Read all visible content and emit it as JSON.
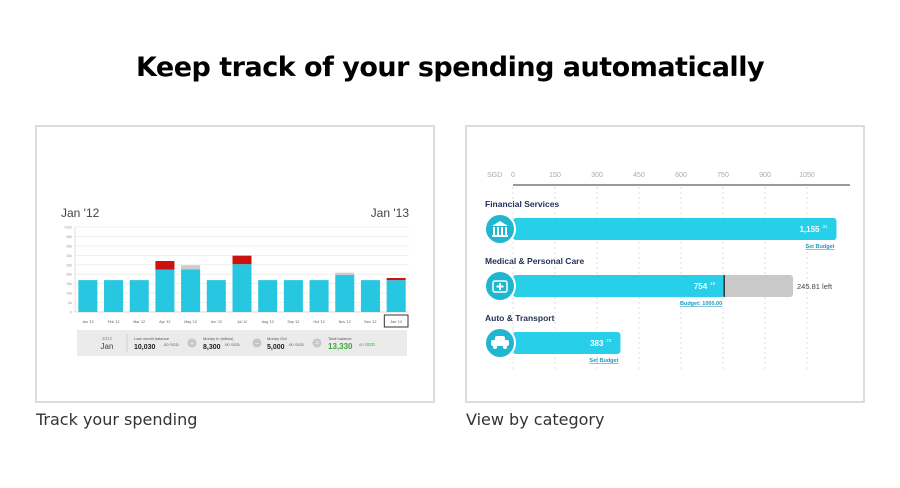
{
  "headline": "Keep track of your spending automatically",
  "captions": {
    "left": "Track your spending",
    "right": "View by category"
  },
  "monthly_chart": {
    "start_label": "Jan '12",
    "end_label": "Jan '13",
    "months": [
      "Jan '12",
      "Feb '12",
      "Mar '12",
      "Apr '12",
      "May '12",
      "Jun '12",
      "Jul '12",
      "Aug '12",
      "Sep '12",
      "Oct '12",
      "Nov '12",
      "Dec '12",
      "Jan '13"
    ],
    "ytick_labels": [
      "SGD",
      "40k",
      "35k",
      "30k",
      "25k",
      "20k",
      "15k",
      "10k",
      "5k",
      "0"
    ],
    "ymax": 40,
    "base_values": [
      15,
      15,
      15,
      20,
      20,
      15,
      22.5,
      15,
      15,
      15,
      17.5,
      15,
      15
    ],
    "overspend_values": [
      0,
      0,
      0,
      4,
      0,
      0,
      4,
      0,
      0,
      0,
      0,
      0,
      1
    ],
    "gray_values": [
      0,
      0,
      0,
      0,
      2,
      0,
      0,
      0,
      0,
      0,
      1,
      0,
      0
    ],
    "colors": {
      "base": "#27c6e1",
      "overspend": "#cc1111",
      "gray": "#cccccc"
    }
  },
  "summary_bar": {
    "period_year": "2012",
    "period_month": "Jan",
    "last_month_label": "Last month balance",
    "last_month_value": "10,030",
    "last_month_decimals": ".00",
    "money_in_label": "Money In (inflow)",
    "money_in_value": "8,300",
    "money_in_decimals": ".00",
    "money_out_label": "Money Out",
    "money_out_value": "5,000",
    "money_out_decimals": ".00",
    "total_label": "Total balance",
    "total_value": "13,330",
    "total_decimals": ".00",
    "currency": "SGD",
    "plus_symbol": "+",
    "minus_symbol": "−",
    "equals_symbol": "="
  },
  "category_chart": {
    "axis_unit": "SGD",
    "ticks": [
      "0",
      "150",
      "300",
      "450",
      "600",
      "750",
      "900",
      "1050"
    ],
    "xmax": 1050,
    "categories": [
      {
        "name": "Financial Services",
        "icon": "bank-icon",
        "spent": 1155.31,
        "spent_int": "1,155",
        "spent_dec": ".31",
        "budget": null,
        "link": "Set Budget",
        "left_text": ""
      },
      {
        "name": "Medical & Personal Care",
        "icon": "medical-icon",
        "spent": 754.19,
        "spent_int": "754",
        "spent_dec": ".19",
        "budget": 1000,
        "link": "Budget: 1000.00",
        "left_text": "245.81 left"
      },
      {
        "name": "Auto & Transport",
        "icon": "car-icon",
        "spent": 383.72,
        "spent_int": "383",
        "spent_dec": ".72",
        "budget": null,
        "link": "Set Budget",
        "left_text": ""
      }
    ],
    "colors": {
      "bar": "#27d0e8",
      "icon": "#21b6cf",
      "budget_rest": "#c9c9c9",
      "link": "#1a9bbf"
    }
  }
}
